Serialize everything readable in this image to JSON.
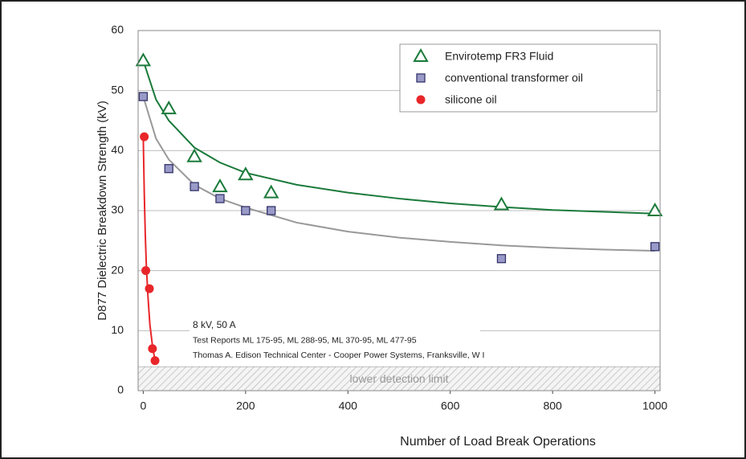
{
  "chart_data": {
    "type": "scatter",
    "xlabel": "Number of Load Break Operations",
    "ylabel": "D877 Dielectric Breakdown Strength (kV)",
    "xlim": [
      -10,
      1010
    ],
    "ylim": [
      0,
      60
    ],
    "xticks": [
      0,
      200,
      400,
      600,
      800,
      1000
    ],
    "yticks": [
      0,
      10,
      20,
      30,
      40,
      50,
      60
    ],
    "grid": true,
    "legend": "upper right",
    "series": [
      {
        "name": "Envirotemp FR3 Fluid",
        "marker": "triangle",
        "color": "#1a7a3a",
        "x": [
          0,
          50,
          100,
          150,
          200,
          250,
          700,
          1000
        ],
        "values": [
          55,
          47,
          39,
          34,
          36,
          33,
          31,
          30
        ]
      },
      {
        "name": "conventional transformer oil",
        "marker": "square",
        "color": "#9a9ac8",
        "x": [
          0,
          50,
          100,
          150,
          200,
          250,
          700,
          1000
        ],
        "values": [
          49,
          37,
          34,
          32,
          30,
          30,
          22,
          24
        ]
      },
      {
        "name": "silicone oil",
        "marker": "circle",
        "color": "#e8262a",
        "x": [
          2,
          5,
          12,
          18,
          23
        ],
        "values": [
          42.3,
          20,
          17,
          7,
          5
        ]
      }
    ],
    "trend_lines": [
      {
        "color": "#1a7a3a",
        "x": [
          0,
          25,
          50,
          100,
          150,
          200,
          300,
          400,
          500,
          600,
          700,
          800,
          900,
          1000
        ],
        "values": [
          55,
          48.5,
          45,
          40.5,
          38,
          36.3,
          34.3,
          33,
          32,
          31.2,
          30.6,
          30.1,
          29.8,
          29.5
        ]
      },
      {
        "color": "#999999",
        "x": [
          0,
          25,
          50,
          100,
          150,
          200,
          300,
          400,
          500,
          600,
          700,
          800,
          900,
          1000
        ],
        "values": [
          49,
          42,
          38.5,
          34.3,
          32,
          30.5,
          28,
          26.5,
          25.5,
          24.8,
          24.2,
          23.8,
          23.5,
          23.3
        ]
      },
      {
        "color": "#e8262a",
        "x": [
          0,
          2,
          4,
          6,
          9,
          13,
          18,
          23
        ],
        "values": [
          42.3,
          33,
          26,
          21,
          16,
          11,
          7.5,
          5
        ]
      }
    ],
    "detection_limit": 4,
    "detection_label": "lower detection limit",
    "annotations": [
      "8 kV, 50 A",
      "Test Reports ML 175-95, ML 288-95, ML 370-95, ML 477-95",
      "Thomas A. Edison Technical Center - Cooper Power Systems, Franksville, W I"
    ]
  }
}
